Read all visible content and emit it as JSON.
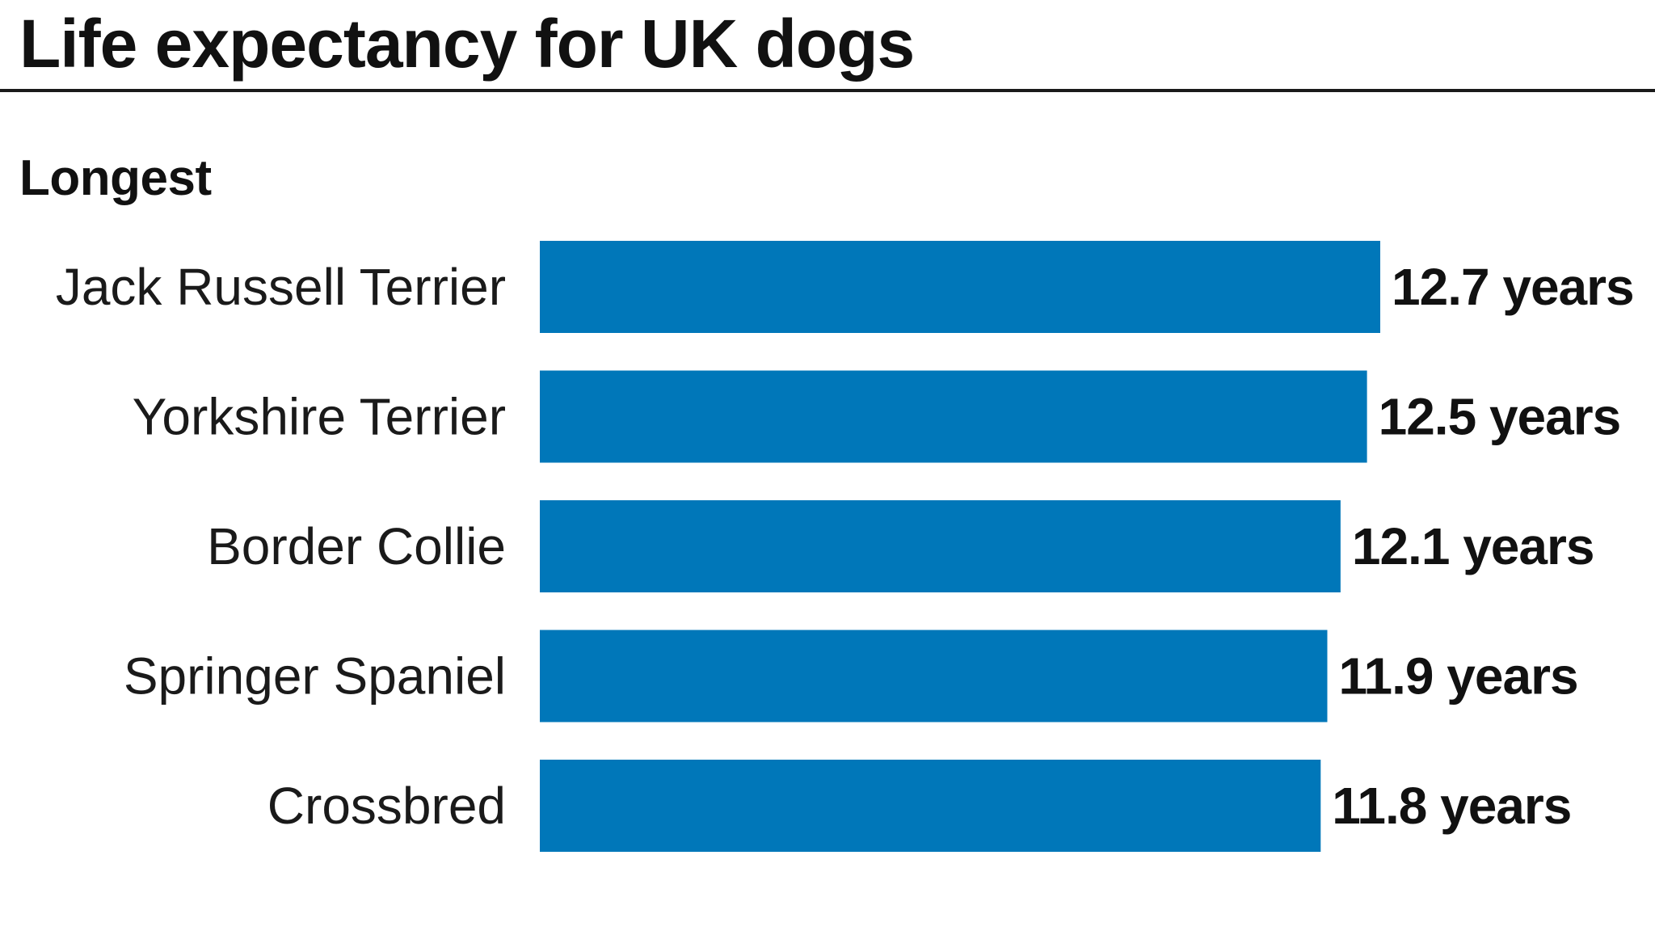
{
  "title": "Life expectancy for UK dogs",
  "subtitle": "Longest",
  "colors": {
    "bar": "#0077b9",
    "text": "#111111",
    "rule": "#1a1a1a"
  },
  "chart_data": {
    "type": "bar",
    "orientation": "horizontal",
    "title": "Life expectancy for UK dogs",
    "subtitle": "Longest",
    "categories": [
      "Jack Russell Terrier",
      "Yorkshire Terrier",
      "Border Collie",
      "Springer Spaniel",
      "Crossbred"
    ],
    "values": [
      12.7,
      12.5,
      12.1,
      11.9,
      11.8
    ],
    "data_labels": [
      "12.7 years",
      "12.5 years",
      "12.1 years",
      "11.9 years",
      "11.8 years"
    ],
    "unit": "years",
    "xlim": [
      0,
      12.7
    ],
    "grid": false,
    "legend": "none"
  }
}
